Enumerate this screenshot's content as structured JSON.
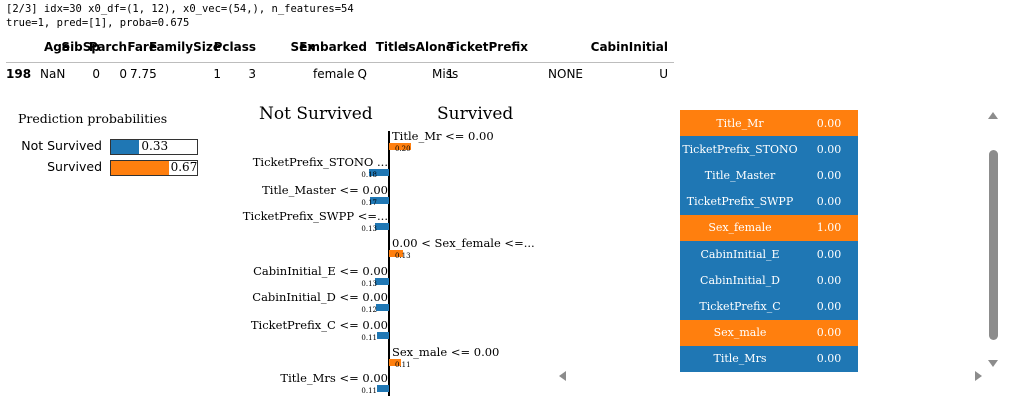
{
  "header": {
    "line1": "[2/3] idx=30 x0_df=(1, 12), x0_vec=(54,), n_features=54",
    "line2": "true=1, pred=[1], proba=0.675"
  },
  "dataframe": {
    "columns": [
      "Age",
      "SibSp",
      "Parch",
      "Fare",
      "FamilySize",
      "Pclass",
      "Sex",
      "Embarked",
      "Title",
      "IsAlone",
      "TicketPrefix",
      "CabinInitial"
    ],
    "index": "198",
    "row": [
      "NaN",
      "0",
      "0",
      "7.75",
      "1",
      "3",
      "female",
      "Q",
      "Miss",
      "1",
      "NONE",
      "U"
    ]
  },
  "prediction": {
    "title": "Prediction probabilities",
    "items": [
      {
        "label": "Not Survived",
        "value": "0.33",
        "fraction": 0.33,
        "color": "#1f77b4"
      },
      {
        "label": "Survived",
        "value": "0.67",
        "fraction": 0.67,
        "color": "#ff7f0e"
      }
    ]
  },
  "explanation": {
    "class_left": "Not Survived",
    "class_right": "Survived",
    "colors": {
      "negative": "#1f77b4",
      "positive": "#ff7f0e"
    },
    "features": [
      {
        "label": "Title_Mr <= 0.00",
        "weight": 0.2,
        "value_text": "0.20",
        "side": "right"
      },
      {
        "label": "TicketPrefix_STONO ...",
        "weight": 0.18,
        "value_text": "0.18",
        "side": "left"
      },
      {
        "label": "Title_Master <= 0.00",
        "weight": 0.17,
        "value_text": "0.17",
        "side": "left"
      },
      {
        "label": "TicketPrefix_SWPP <=...",
        "weight": 0.13,
        "value_text": "0.13",
        "side": "left"
      },
      {
        "label": "0.00 < Sex_female <=...",
        "weight": 0.13,
        "value_text": "0.13",
        "side": "right"
      },
      {
        "label": "CabinInitial_E <= 0.00",
        "weight": 0.13,
        "value_text": "0.13",
        "side": "left"
      },
      {
        "label": "CabinInitial_D <= 0.00",
        "weight": 0.12,
        "value_text": "0.12",
        "side": "left"
      },
      {
        "label": "TicketPrefix_C <= 0.00",
        "weight": 0.11,
        "value_text": "0.11",
        "side": "left"
      },
      {
        "label": "Sex_male <= 0.00",
        "weight": 0.11,
        "value_text": "0.11",
        "side": "right"
      },
      {
        "label": "Title_Mrs <= 0.00",
        "weight": 0.11,
        "value_text": "0.11",
        "side": "left"
      }
    ]
  },
  "feature_table": [
    {
      "name": "Title_Mr",
      "value": "0.00",
      "color": "#ff7f0e"
    },
    {
      "name": "TicketPrefix_STONO",
      "value": "0.00",
      "color": "#1f77b4"
    },
    {
      "name": "Title_Master",
      "value": "0.00",
      "color": "#1f77b4"
    },
    {
      "name": "TicketPrefix_SWPP",
      "value": "0.00",
      "color": "#1f77b4"
    },
    {
      "name": "Sex_female",
      "value": "1.00",
      "color": "#ff7f0e"
    },
    {
      "name": "CabinInitial_E",
      "value": "0.00",
      "color": "#1f77b4"
    },
    {
      "name": "CabinInitial_D",
      "value": "0.00",
      "color": "#1f77b4"
    },
    {
      "name": "TicketPrefix_C",
      "value": "0.00",
      "color": "#1f77b4"
    },
    {
      "name": "Sex_male",
      "value": "0.00",
      "color": "#ff7f0e"
    },
    {
      "name": "Title_Mrs",
      "value": "0.00",
      "color": "#1f77b4"
    }
  ]
}
